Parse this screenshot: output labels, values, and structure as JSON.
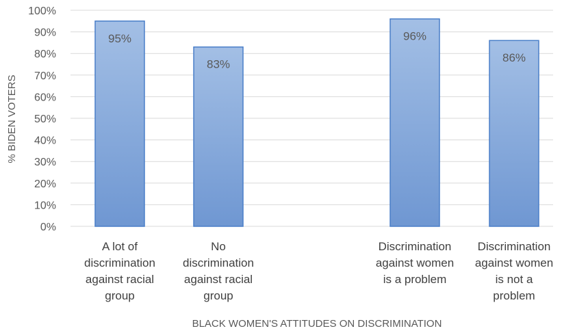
{
  "chart_data": {
    "type": "bar",
    "title": "",
    "xlabel": "BLACK WOMEN'S ATTITUDES ON DISCRIMINATION",
    "ylabel": "% BIDEN VOTERS",
    "ylim": [
      0,
      100
    ],
    "yticks": [
      "0%",
      "10%",
      "20%",
      "30%",
      "40%",
      "50%",
      "60%",
      "70%",
      "80%",
      "90%",
      "100%"
    ],
    "categories": [
      [
        "A lot of",
        "discrimination",
        "against racial",
        "group"
      ],
      [
        "No",
        "discrimination",
        "against racial",
        "group"
      ],
      [
        "Discrimination",
        "against women",
        "is a problem"
      ],
      [
        "Discrimination",
        "against women",
        "is not a",
        "problem"
      ]
    ],
    "values": [
      95,
      83,
      96,
      86
    ],
    "data_labels": [
      "95%",
      "83%",
      "96%",
      "86%"
    ],
    "grid": true,
    "legend": "none",
    "colors": {
      "bar_top": "#a3bfe5",
      "bar_bottom": "#6f97d2",
      "bar_border": "#4a7fc8",
      "grid": "#d9d9d9"
    }
  }
}
